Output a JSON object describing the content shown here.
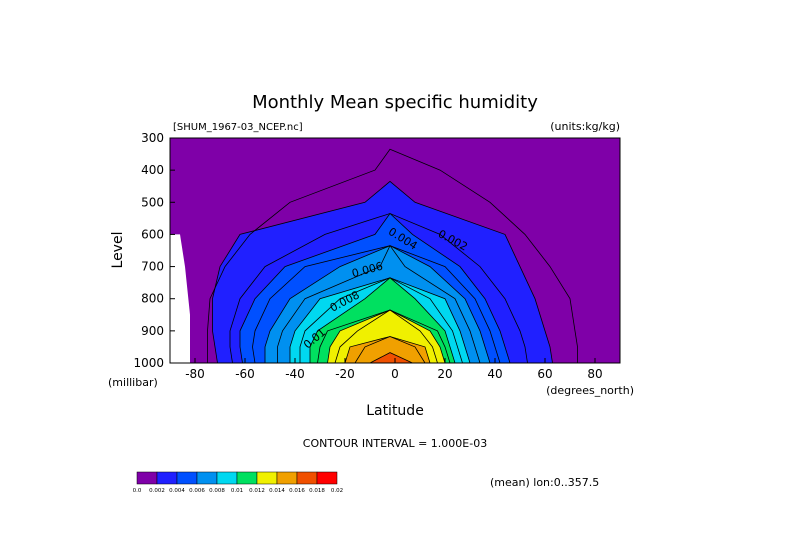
{
  "chart_data": {
    "type": "heatmap",
    "title": "Monthly Mean specific humidity",
    "file_label": "[SHUM_1967-03_NCEP.nc]",
    "units_label": "(units:kg/kg)",
    "xlabel": "Latitude",
    "x_unit_label": "(degrees_north)",
    "ylabel": "Level",
    "y_unit_label": "(millibar)",
    "xlim": [
      -90,
      90
    ],
    "ylim": [
      1000,
      300
    ],
    "x_ticks": [
      -80,
      -60,
      -40,
      -20,
      0,
      20,
      40,
      60,
      80
    ],
    "y_ticks": [
      300,
      400,
      500,
      600,
      700,
      800,
      900,
      1000
    ],
    "contour_interval_text": "CONTOUR INTERVAL = 1.000E-03",
    "mean_text": "(mean) lon:0..357.5",
    "contour_labels": [
      "0.002",
      "0.004",
      "0.006",
      "0.008",
      "0.01"
    ],
    "levels": [
      0.0,
      0.001,
      0.002,
      0.003,
      0.004,
      0.005,
      0.006,
      0.007,
      0.008,
      0.009,
      0.01,
      0.011,
      0.012,
      0.013,
      0.014,
      0.015,
      0.016
    ],
    "colorbar": {
      "labels": [
        "0.0",
        "0.002",
        "0.004",
        "0.006",
        "0.008",
        "0.01",
        "0.012",
        "0.014",
        "0.016",
        "0.018",
        "0.02"
      ],
      "colors": [
        "#7f00a8",
        "#2020ff",
        "#0050ff",
        "#0090f0",
        "#00d8f0",
        "#00e060",
        "#f0f000",
        "#f0a000",
        "#f05000",
        "#ff0000"
      ]
    },
    "no_data_region": {
      "lat_max": -88,
      "boundary": [
        [
          600,
          -86
        ],
        [
          700,
          -84
        ],
        [
          850,
          -82
        ],
        [
          1000,
          -82
        ]
      ]
    },
    "profiles": {
      "levels_mb": [
        300,
        400,
        500,
        600,
        700,
        800,
        900,
        950,
        1000
      ],
      "center_lat": -2,
      "contours": [
        {
          "value": 0.001,
          "edges": [
            [
              null,
              null
            ],
            [
              -8,
              18
            ],
            [
              -42,
              38
            ],
            [
              -58,
              52
            ],
            [
              -68,
              62
            ],
            [
              -74,
              70
            ],
            [
              -75,
              72
            ],
            [
              -75,
              73
            ],
            [
              -75,
              73
            ]
          ]
        },
        {
          "value": 0.002,
          "edges": [
            [
              null,
              null
            ],
            [
              null,
              null
            ],
            [
              -12,
              8
            ],
            [
              -62,
              44
            ],
            [
              -70,
              50
            ],
            [
              -73,
              56
            ],
            [
              -73,
              60
            ],
            [
              -72,
              62
            ],
            [
              -71,
              63
            ]
          ]
        },
        {
          "value": 0.003,
          "edges": [
            [
              null,
              null
            ],
            [
              null,
              null
            ],
            [
              null,
              null
            ],
            [
              -28,
              18
            ],
            [
              -52,
              34
            ],
            [
              -62,
              44
            ],
            [
              -66,
              50
            ],
            [
              -66,
              52
            ],
            [
              -65,
              53
            ]
          ]
        },
        {
          "value": 0.004,
          "edges": [
            [
              null,
              null
            ],
            [
              null,
              null
            ],
            [
              null,
              null
            ],
            [
              -8,
              7
            ],
            [
              -44,
              26
            ],
            [
              -56,
              36
            ],
            [
              -62,
              42
            ],
            [
              -62,
              44
            ],
            [
              -61,
              46
            ]
          ]
        },
        {
          "value": 0.005,
          "edges": [
            [
              null,
              null
            ],
            [
              null,
              null
            ],
            [
              null,
              null
            ],
            [
              null,
              null
            ],
            [
              -36,
              20
            ],
            [
              -50,
              32
            ],
            [
              -56,
              38
            ],
            [
              -57,
              40
            ],
            [
              -56,
              42
            ]
          ]
        },
        {
          "value": 0.006,
          "edges": [
            [
              null,
              null
            ],
            [
              null,
              null
            ],
            [
              null,
              null
            ],
            [
              null,
              null
            ],
            [
              -22,
              14
            ],
            [
              -42,
              28
            ],
            [
              -50,
              34
            ],
            [
              -52,
              36
            ],
            [
              -52,
              38
            ]
          ]
        },
        {
          "value": 0.007,
          "edges": [
            [
              null,
              null
            ],
            [
              null,
              null
            ],
            [
              null,
              null
            ],
            [
              null,
              null
            ],
            [
              -6,
              4
            ],
            [
              -36,
              24
            ],
            [
              -45,
              30
            ],
            [
              -47,
              32
            ],
            [
              -47,
              34
            ]
          ]
        },
        {
          "value": 0.008,
          "edges": [
            [
              null,
              null
            ],
            [
              null,
              null
            ],
            [
              null,
              null
            ],
            [
              null,
              null
            ],
            [
              null,
              null
            ],
            [
              -30,
              20
            ],
            [
              -40,
              26
            ],
            [
              -42,
              28
            ],
            [
              -42,
              30
            ]
          ]
        },
        {
          "value": 0.009,
          "edges": [
            [
              null,
              null
            ],
            [
              null,
              null
            ],
            [
              null,
              null
            ],
            [
              null,
              null
            ],
            [
              null,
              null
            ],
            [
              -22,
              14
            ],
            [
              -36,
              23
            ],
            [
              -38,
              25
            ],
            [
              -38,
              27
            ]
          ]
        },
        {
          "value": 0.01,
          "edges": [
            [
              null,
              null
            ],
            [
              null,
              null
            ],
            [
              null,
              null
            ],
            [
              null,
              null
            ],
            [
              null,
              null
            ],
            [
              -12,
              8
            ],
            [
              -31,
              20
            ],
            [
              -34,
              22
            ],
            [
              -34,
              24
            ]
          ]
        },
        {
          "value": 0.011,
          "edges": [
            [
              null,
              null
            ],
            [
              null,
              null
            ],
            [
              null,
              null
            ],
            [
              null,
              null
            ],
            [
              null,
              null
            ],
            [
              null,
              null
            ],
            [
              -27,
              17
            ],
            [
              -30,
              20
            ],
            [
              -31,
              22
            ]
          ]
        },
        {
          "value": 0.012,
          "edges": [
            [
              null,
              null
            ],
            [
              null,
              null
            ],
            [
              null,
              null
            ],
            [
              null,
              null
            ],
            [
              null,
              null
            ],
            [
              null,
              null
            ],
            [
              -22,
              14
            ],
            [
              -26,
              18
            ],
            [
              -27,
              20
            ]
          ]
        },
        {
          "value": 0.013,
          "edges": [
            [
              null,
              null
            ],
            [
              null,
              null
            ],
            [
              null,
              null
            ],
            [
              null,
              null
            ],
            [
              null,
              null
            ],
            [
              null,
              null
            ],
            [
              -15,
              10
            ],
            [
              -22,
              15
            ],
            [
              -24,
              17
            ]
          ]
        },
        {
          "value": 0.014,
          "edges": [
            [
              null,
              null
            ],
            [
              null,
              null
            ],
            [
              null,
              null
            ],
            [
              null,
              null
            ],
            [
              null,
              null
            ],
            [
              null,
              null
            ],
            [
              null,
              null
            ],
            [
              -18,
              12
            ],
            [
              -20,
              14
            ]
          ]
        },
        {
          "value": 0.015,
          "edges": [
            [
              null,
              null
            ],
            [
              null,
              null
            ],
            [
              null,
              null
            ],
            [
              null,
              null
            ],
            [
              null,
              null
            ],
            [
              null,
              null
            ],
            [
              null,
              null
            ],
            [
              -12,
              8
            ],
            [
              -16,
              12
            ]
          ]
        },
        {
          "value": 0.016,
          "edges": [
            [
              null,
              null
            ],
            [
              null,
              null
            ],
            [
              null,
              null
            ],
            [
              null,
              null
            ],
            [
              null,
              null
            ],
            [
              null,
              null
            ],
            [
              null,
              null
            ],
            [
              null,
              null
            ],
            [
              -10,
              7
            ]
          ]
        }
      ]
    }
  }
}
